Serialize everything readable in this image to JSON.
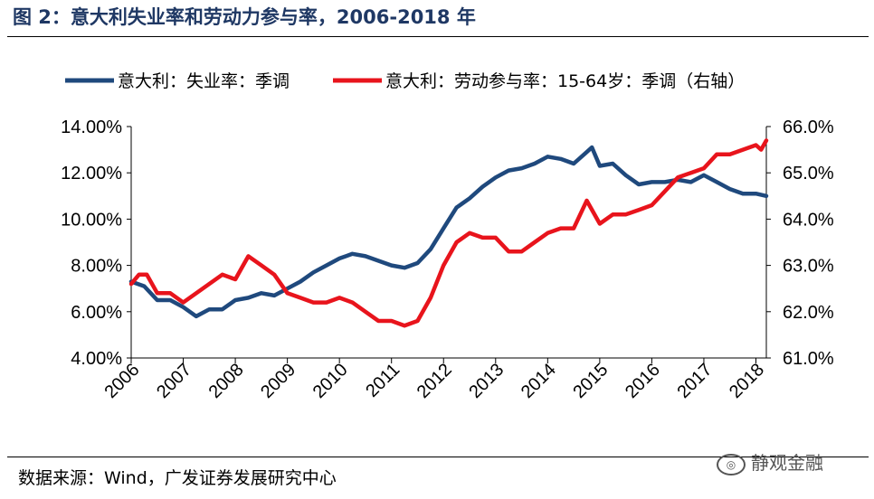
{
  "header": {
    "title": "图 2：意大利失业率和劳动力参与率，2006-2018 年"
  },
  "footer": {
    "source": "数据来源：Wind，广发证券发展研究中心",
    "watermark": "静观金融"
  },
  "chart_data": {
    "type": "line",
    "title": "意大利失业率和劳动力参与率，2006-2018 年",
    "x_ticks": [
      "2006",
      "2007",
      "2008",
      "2009",
      "2010",
      "2011",
      "2012",
      "2013",
      "2014",
      "2015",
      "2016",
      "2017",
      "2018"
    ],
    "xlim": [
      2006.0,
      2018.2
    ],
    "y_left": {
      "ylim": [
        4.0,
        14.0
      ],
      "ticks": [
        "4.00%",
        "6.00%",
        "8.00%",
        "10.00%",
        "12.00%",
        "14.00%"
      ],
      "tick_values": [
        4,
        6,
        8,
        10,
        12,
        14
      ]
    },
    "y_right": {
      "ylim": [
        61.0,
        66.0
      ],
      "ticks": [
        "61.0%",
        "62.0%",
        "63.0%",
        "64.0%",
        "65.0%",
        "66.0%"
      ],
      "tick_values": [
        61,
        62,
        63,
        64,
        65,
        66
      ]
    },
    "legend_position": "top",
    "series": [
      {
        "name": "意大利：失业率：季调",
        "axis": "left",
        "color": "#1f497d",
        "x": [
          2006.0,
          2006.25,
          2006.5,
          2006.75,
          2007.0,
          2007.25,
          2007.5,
          2007.75,
          2008.0,
          2008.25,
          2008.5,
          2008.75,
          2009.0,
          2009.25,
          2009.5,
          2009.75,
          2010.0,
          2010.25,
          2010.5,
          2010.75,
          2011.0,
          2011.25,
          2011.5,
          2011.75,
          2012.0,
          2012.25,
          2012.5,
          2012.75,
          2013.0,
          2013.25,
          2013.5,
          2013.75,
          2014.0,
          2014.25,
          2014.5,
          2014.75,
          2014.85,
          2015.0,
          2015.25,
          2015.5,
          2015.75,
          2016.0,
          2016.25,
          2016.5,
          2016.75,
          2017.0,
          2017.25,
          2017.5,
          2017.75,
          2018.0,
          2018.2
        ],
        "values": [
          7.3,
          7.1,
          6.5,
          6.5,
          6.2,
          5.8,
          6.1,
          6.1,
          6.5,
          6.6,
          6.8,
          6.7,
          7.0,
          7.3,
          7.7,
          8.0,
          8.3,
          8.5,
          8.4,
          8.2,
          8.0,
          7.9,
          8.1,
          8.7,
          9.6,
          10.5,
          10.9,
          11.4,
          11.8,
          12.1,
          12.2,
          12.4,
          12.7,
          12.6,
          12.4,
          12.9,
          13.1,
          12.3,
          12.4,
          11.9,
          11.5,
          11.6,
          11.6,
          11.7,
          11.6,
          11.9,
          11.6,
          11.3,
          11.1,
          11.1,
          11.0
        ]
      },
      {
        "name": "意大利：劳动参与率：15-64岁：季调（右轴）",
        "axis": "right",
        "color": "#e8141c",
        "x": [
          2006.0,
          2006.15,
          2006.3,
          2006.5,
          2006.75,
          2007.0,
          2007.25,
          2007.5,
          2007.75,
          2008.0,
          2008.15,
          2008.25,
          2008.5,
          2008.75,
          2009.0,
          2009.25,
          2009.5,
          2009.75,
          2010.0,
          2010.25,
          2010.5,
          2010.75,
          2011.0,
          2011.25,
          2011.5,
          2011.75,
          2012.0,
          2012.25,
          2012.5,
          2012.75,
          2013.0,
          2013.25,
          2013.5,
          2013.75,
          2014.0,
          2014.25,
          2014.5,
          2014.75,
          2015.0,
          2015.25,
          2015.5,
          2015.75,
          2016.0,
          2016.25,
          2016.5,
          2016.75,
          2017.0,
          2017.25,
          2017.5,
          2017.75,
          2018.0,
          2018.1,
          2018.2
        ],
        "values": [
          62.6,
          62.8,
          62.8,
          62.4,
          62.4,
          62.2,
          62.4,
          62.6,
          62.8,
          62.7,
          63.0,
          63.2,
          63.0,
          62.8,
          62.4,
          62.3,
          62.2,
          62.2,
          62.3,
          62.2,
          62.0,
          61.8,
          61.8,
          61.7,
          61.8,
          62.3,
          63.0,
          63.5,
          63.7,
          63.6,
          63.6,
          63.3,
          63.3,
          63.5,
          63.7,
          63.8,
          63.8,
          64.4,
          63.9,
          64.1,
          64.1,
          64.2,
          64.3,
          64.6,
          64.9,
          65.0,
          65.1,
          65.4,
          65.4,
          65.5,
          65.6,
          65.5,
          65.7
        ]
      }
    ]
  }
}
